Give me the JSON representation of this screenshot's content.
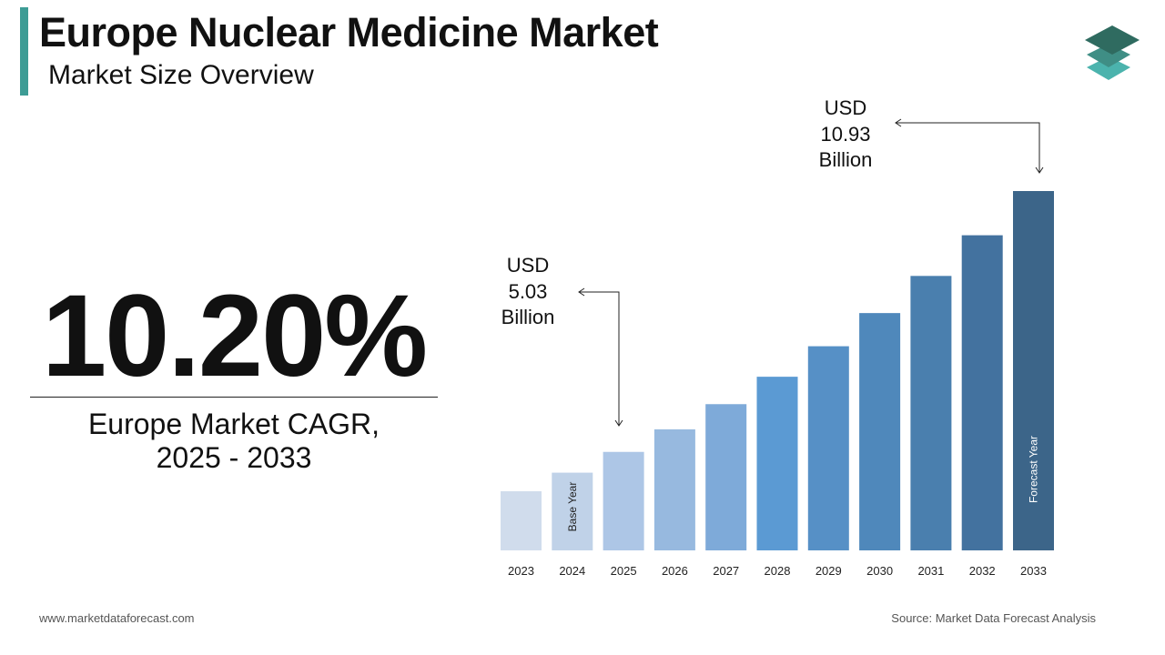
{
  "header": {
    "title": "Europe Nuclear Medicine Market",
    "subtitle": "Market Size Overview"
  },
  "kpi": {
    "value": "10.20%",
    "label_line1": "Europe Market CAGR,",
    "label_line2": "2025 - 2033"
  },
  "callouts": {
    "base": {
      "line1": "USD",
      "line2": "5.03",
      "line3": "Billion"
    },
    "forecast": {
      "line1": "USD",
      "line2": "10.93",
      "line3": "Billion"
    }
  },
  "footer": {
    "website": "www.marketdataforecast.com",
    "source": "Source: Market Data Forecast Analysis"
  },
  "logo": {
    "icon": "stacked-layers-icon",
    "colors": [
      "#2f6b60",
      "#3f8e85",
      "#4bb3ad"
    ]
  },
  "chart_data": {
    "type": "bar",
    "categories": [
      "2023",
      "2024",
      "2025",
      "2026",
      "2027",
      "2028",
      "2029",
      "2030",
      "2031",
      "2032",
      "2033"
    ],
    "values": [
      4.14,
      4.56,
      5.03,
      5.54,
      6.11,
      6.73,
      7.42,
      8.17,
      9.01,
      9.93,
      10.93
    ],
    "labeled_values": {
      "2025": 5.03,
      "2033": 10.93
    },
    "unit": "USD Billion",
    "bar_annotations": {
      "2024": "Base Year",
      "2033": "Forecast Year"
    },
    "colors": [
      "#d0dcec",
      "#c0d2e8",
      "#adc6e6",
      "#97b9df",
      "#7eaad9",
      "#5b9ad3",
      "#5690c6",
      "#4f88bb",
      "#4a7fae",
      "#43729f",
      "#3c6589"
    ],
    "grid": false,
    "legend": "none",
    "xlabel": "",
    "ylabel": ""
  }
}
